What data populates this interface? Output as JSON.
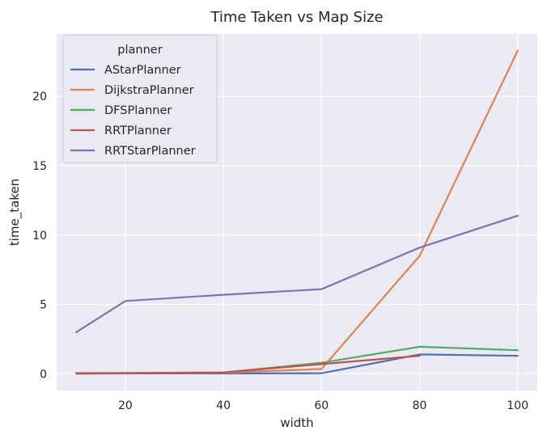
{
  "chart_data": {
    "type": "line",
    "title": "Time Taken vs Map Size",
    "xlabel": "width",
    "ylabel": "time_taken",
    "xlim": [
      6,
      104
    ],
    "ylim": [
      -1.2,
      24.5
    ],
    "x_ticks": [
      20,
      40,
      60,
      80,
      100
    ],
    "y_ticks": [
      0,
      5,
      10,
      15,
      20
    ],
    "grid": true,
    "legend": {
      "title": "planner",
      "placement": "top-left"
    },
    "series": [
      {
        "name": "AStarPlanner",
        "color": "#4c72b0",
        "x": [
          10,
          20,
          40,
          60,
          80,
          100
        ],
        "y": [
          0.02,
          0.03,
          0.03,
          0.04,
          1.4,
          1.3
        ]
      },
      {
        "name": "DijkstraPlanner",
        "color": "#dd8452",
        "x": [
          10,
          20,
          40,
          60,
          80,
          100
        ],
        "y": [
          0.02,
          0.04,
          0.08,
          0.35,
          8.5,
          23.3
        ]
      },
      {
        "name": "DFSPlanner",
        "color": "#55a868",
        "x": [
          10,
          20,
          40,
          60,
          80,
          100
        ],
        "y": [
          0.03,
          0.05,
          0.1,
          0.8,
          1.95,
          1.7
        ]
      },
      {
        "name": "RRTPlanner",
        "color": "#c44e52",
        "x": [
          10,
          20,
          40,
          60,
          80
        ],
        "y": [
          0.05,
          0.06,
          0.1,
          0.7,
          1.3
        ]
      },
      {
        "name": "RRTStarPlanner",
        "color": "#8172b3",
        "x": [
          10,
          20,
          40,
          60,
          80,
          100
        ],
        "y": [
          3.0,
          5.25,
          5.7,
          6.1,
          9.1,
          11.4
        ]
      }
    ]
  }
}
